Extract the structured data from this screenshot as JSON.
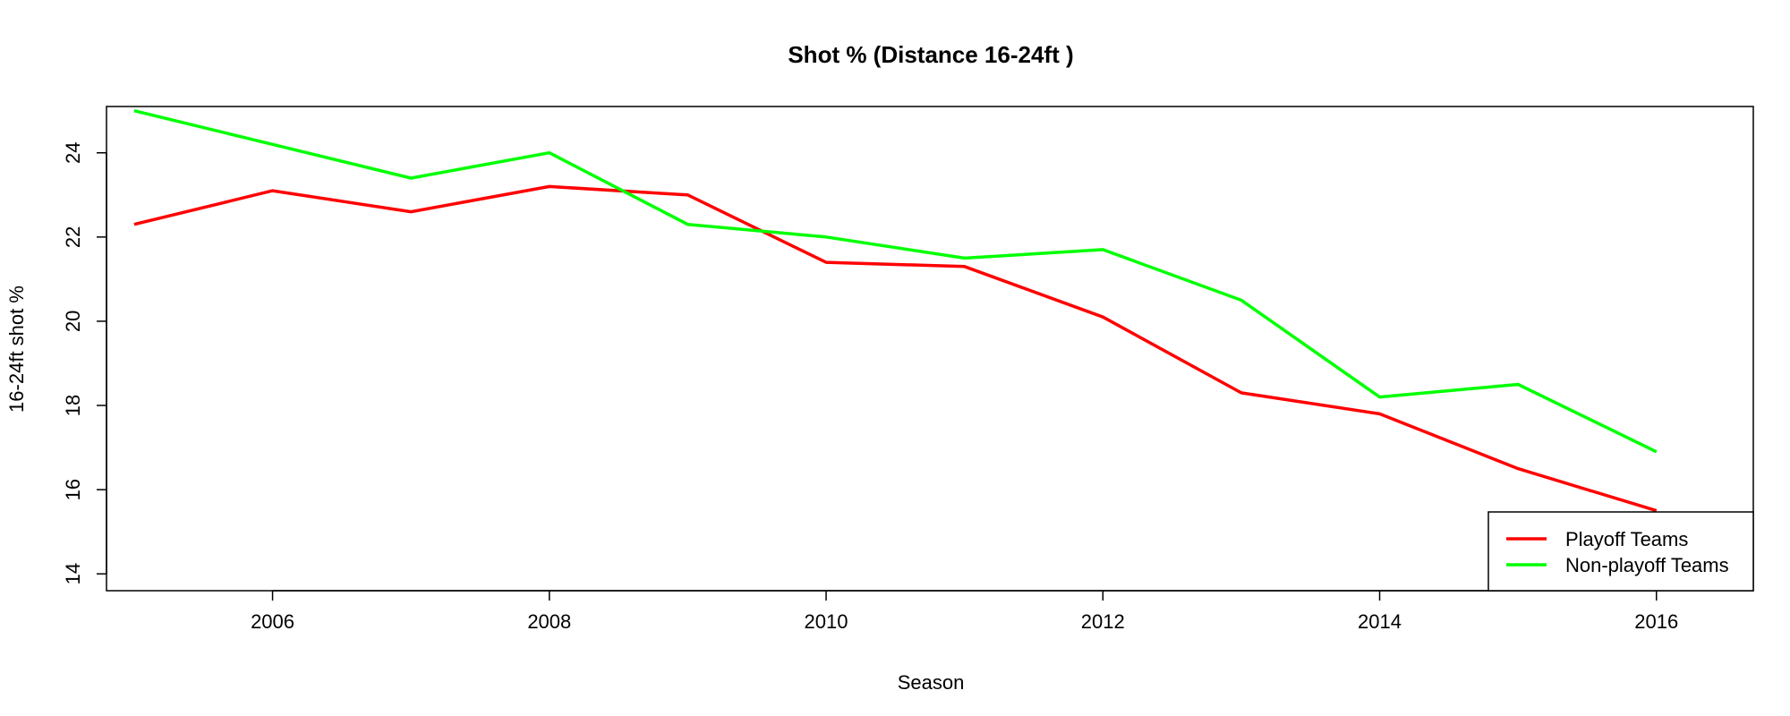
{
  "chart_data": {
    "type": "line",
    "title": "Shot % (Distance  16-24ft )",
    "xlabel": "Season",
    "ylabel": "16-24ft  shot %",
    "x": [
      2005,
      2006,
      2007,
      2008,
      2009,
      2010,
      2011,
      2012,
      2013,
      2014,
      2015,
      2016
    ],
    "xlim": [
      2004.8,
      2016.7
    ],
    "ylim": [
      13.6,
      25.1
    ],
    "xticks": [
      2006,
      2008,
      2010,
      2012,
      2014,
      2016
    ],
    "yticks": [
      14,
      16,
      18,
      20,
      22,
      24
    ],
    "grid": false,
    "legend_position": "bottom-right",
    "series": [
      {
        "name": "Playoff Teams",
        "color": "#ff0000",
        "values": [
          22.3,
          23.1,
          22.6,
          23.2,
          23.0,
          21.4,
          21.3,
          20.1,
          18.3,
          17.8,
          16.5,
          15.5
        ]
      },
      {
        "name": "Non-playoff Teams",
        "color": "#00ff00",
        "values": [
          25.0,
          24.2,
          23.4,
          24.0,
          22.3,
          22.0,
          21.5,
          21.7,
          20.5,
          18.2,
          18.5,
          16.9
        ]
      }
    ]
  }
}
